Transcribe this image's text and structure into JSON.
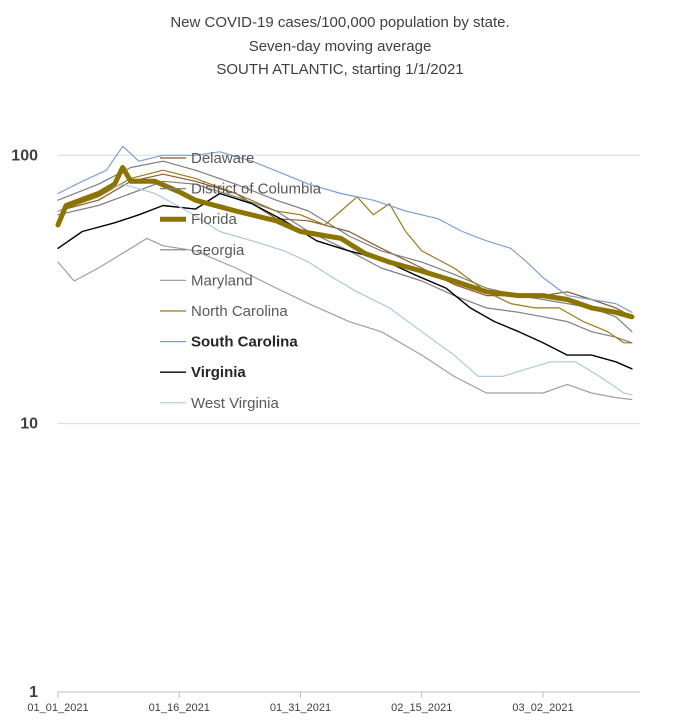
{
  "chart_data": {
    "type": "line",
    "title_lines": [
      "New COVID-19 cases/100,000 population by state.",
      "Seven-day moving average",
      "SOUTH ATLANTIC, starting 1/1/2021"
    ],
    "y_scale": "log",
    "ylim": [
      1,
      150
    ],
    "y_ticks": [
      1,
      10,
      100
    ],
    "y_tick_labels": [
      "1",
      "10",
      "100"
    ],
    "x_start": "2021-01-01",
    "x_end": "2021-03-14",
    "x_ticks": [
      "2021-01-01",
      "2021-01-16",
      "2021-01-31",
      "2021-02-15",
      "2021-03-02"
    ],
    "x_tick_labels": [
      "01_01_2021",
      "01_16_2021",
      "01_31_2021",
      "02_15_2021",
      "03_02_2021"
    ],
    "grid": "horizontal",
    "legend_position": "top-center",
    "series": [
      {
        "name": "Delaware",
        "color": "#8B5A2B",
        "width": 1.2,
        "bold": false,
        "anchors": [
          [
            0,
            62
          ],
          [
            5,
            68
          ],
          [
            9,
            80
          ],
          [
            13,
            85
          ],
          [
            17,
            80
          ],
          [
            22,
            72
          ],
          [
            27,
            58
          ],
          [
            31,
            57
          ],
          [
            36,
            52
          ],
          [
            40,
            45
          ],
          [
            45,
            38
          ],
          [
            49,
            33
          ],
          [
            53,
            30
          ],
          [
            57,
            30
          ],
          [
            60,
            30
          ],
          [
            63,
            31
          ],
          [
            66,
            29
          ],
          [
            69,
            27
          ],
          [
            71,
            25
          ]
        ]
      },
      {
        "name": "District of Columbia",
        "color": "#7F7F7F",
        "width": 1.2,
        "bold": false,
        "anchors": [
          [
            0,
            68
          ],
          [
            5,
            78
          ],
          [
            9,
            90
          ],
          [
            13,
            95
          ],
          [
            17,
            88
          ],
          [
            22,
            78
          ],
          [
            27,
            68
          ],
          [
            31,
            62
          ],
          [
            36,
            50
          ],
          [
            40,
            44
          ],
          [
            45,
            40
          ],
          [
            49,
            36
          ],
          [
            53,
            32
          ],
          [
            57,
            30
          ],
          [
            60,
            29
          ],
          [
            63,
            28
          ],
          [
            66,
            27
          ],
          [
            69,
            25
          ],
          [
            71,
            22
          ]
        ]
      },
      {
        "name": "Florida",
        "color": "#8B7500",
        "width": 5,
        "bold": false,
        "anchors": [
          [
            0,
            55
          ],
          [
            1,
            65
          ],
          [
            5,
            72
          ],
          [
            7,
            78
          ],
          [
            8,
            90
          ],
          [
            9,
            80
          ],
          [
            12,
            80
          ],
          [
            15,
            73
          ],
          [
            17,
            68
          ],
          [
            22,
            62
          ],
          [
            27,
            57
          ],
          [
            30,
            52
          ],
          [
            35,
            49
          ],
          [
            38,
            43
          ],
          [
            41,
            40
          ],
          [
            45,
            37
          ],
          [
            49,
            34
          ],
          [
            53,
            31
          ],
          [
            57,
            30
          ],
          [
            60,
            30
          ],
          [
            63,
            29
          ],
          [
            66,
            27
          ],
          [
            69,
            26
          ],
          [
            71,
            25
          ]
        ]
      },
      {
        "name": "Georgia",
        "color": "#7F7F7F",
        "width": 1.2,
        "bold": false,
        "anchors": [
          [
            0,
            60
          ],
          [
            5,
            65
          ],
          [
            9,
            72
          ],
          [
            13,
            80
          ],
          [
            17,
            78
          ],
          [
            22,
            70
          ],
          [
            27,
            62
          ],
          [
            31,
            52
          ],
          [
            36,
            44
          ],
          [
            40,
            38
          ],
          [
            45,
            34
          ],
          [
            49,
            30
          ],
          [
            53,
            27
          ],
          [
            57,
            26
          ],
          [
            60,
            25
          ],
          [
            63,
            24
          ],
          [
            66,
            22
          ],
          [
            69,
            21
          ],
          [
            71,
            20
          ]
        ]
      },
      {
        "name": "Maryland",
        "color": "#A0A0A0",
        "width": 1.2,
        "bold": false,
        "anchors": [
          [
            0,
            40
          ],
          [
            2,
            34
          ],
          [
            5,
            38
          ],
          [
            9,
            45
          ],
          [
            11,
            49
          ],
          [
            13,
            46
          ],
          [
            17,
            44
          ],
          [
            22,
            38
          ],
          [
            27,
            32
          ],
          [
            31,
            28
          ],
          [
            36,
            24
          ],
          [
            40,
            22
          ],
          [
            45,
            18
          ],
          [
            49,
            15
          ],
          [
            53,
            13
          ],
          [
            57,
            13
          ],
          [
            60,
            13
          ],
          [
            63,
            14
          ],
          [
            66,
            13
          ],
          [
            69,
            12.5
          ],
          [
            71,
            12.3
          ]
        ]
      },
      {
        "name": "North Carolina",
        "color": "#9A7B1A",
        "width": 1.2,
        "bold": false,
        "anchors": [
          [
            0,
            62
          ],
          [
            5,
            70
          ],
          [
            9,
            82
          ],
          [
            13,
            88
          ],
          [
            17,
            82
          ],
          [
            22,
            72
          ],
          [
            27,
            62
          ],
          [
            30,
            60
          ],
          [
            33,
            55
          ],
          [
            35,
            62
          ],
          [
            37,
            70
          ],
          [
            39,
            60
          ],
          [
            41,
            66
          ],
          [
            43,
            52
          ],
          [
            45,
            44
          ],
          [
            49,
            38
          ],
          [
            53,
            31
          ],
          [
            56,
            28
          ],
          [
            59,
            27
          ],
          [
            62,
            27
          ],
          [
            65,
            24
          ],
          [
            68,
            22
          ],
          [
            70,
            20
          ],
          [
            71,
            20
          ]
        ]
      },
      {
        "name": "South Carolina",
        "color": "#7F9FD4",
        "width": 1.2,
        "bold": true,
        "anchors": [
          [
            0,
            72
          ],
          [
            3,
            80
          ],
          [
            6,
            88
          ],
          [
            8,
            108
          ],
          [
            10,
            95
          ],
          [
            13,
            100
          ],
          [
            17,
            100
          ],
          [
            20,
            103
          ],
          [
            24,
            95
          ],
          [
            28,
            85
          ],
          [
            31,
            78
          ],
          [
            35,
            72
          ],
          [
            39,
            68
          ],
          [
            43,
            62
          ],
          [
            47,
            58
          ],
          [
            50,
            52
          ],
          [
            53,
            48
          ],
          [
            56,
            45
          ],
          [
            58,
            40
          ],
          [
            60,
            35
          ],
          [
            63,
            30
          ],
          [
            66,
            29
          ],
          [
            69,
            28
          ],
          [
            71,
            26
          ]
        ]
      },
      {
        "name": "Virginia",
        "color": "#000000",
        "width": 1.4,
        "bold": true,
        "anchors": [
          [
            0,
            45
          ],
          [
            3,
            52
          ],
          [
            7,
            56
          ],
          [
            10,
            60
          ],
          [
            13,
            65
          ],
          [
            17,
            63
          ],
          [
            20,
            72
          ],
          [
            24,
            66
          ],
          [
            28,
            57
          ],
          [
            32,
            48
          ],
          [
            36,
            44
          ],
          [
            40,
            41
          ],
          [
            44,
            36
          ],
          [
            48,
            32
          ],
          [
            51,
            27
          ],
          [
            54,
            24
          ],
          [
            57,
            22
          ],
          [
            60,
            20
          ],
          [
            63,
            18
          ],
          [
            66,
            18
          ],
          [
            69,
            17
          ],
          [
            71,
            16
          ]
        ]
      },
      {
        "name": "West Virginia",
        "color": "#ADC8E0",
        "width": 1.2,
        "bold": false,
        "anchors": [
          [
            0,
            62
          ],
          [
            4,
            70
          ],
          [
            8,
            78
          ],
          [
            12,
            72
          ],
          [
            16,
            62
          ],
          [
            20,
            52
          ],
          [
            24,
            48
          ],
          [
            28,
            44
          ],
          [
            31,
            40
          ],
          [
            34,
            35
          ],
          [
            37,
            31
          ],
          [
            41,
            27
          ],
          [
            45,
            22
          ],
          [
            49,
            18
          ],
          [
            52,
            15
          ],
          [
            55,
            15
          ],
          [
            58,
            16
          ],
          [
            61,
            17
          ],
          [
            64,
            17
          ],
          [
            67,
            15
          ],
          [
            70,
            13
          ],
          [
            71,
            12.8
          ]
        ]
      }
    ]
  }
}
